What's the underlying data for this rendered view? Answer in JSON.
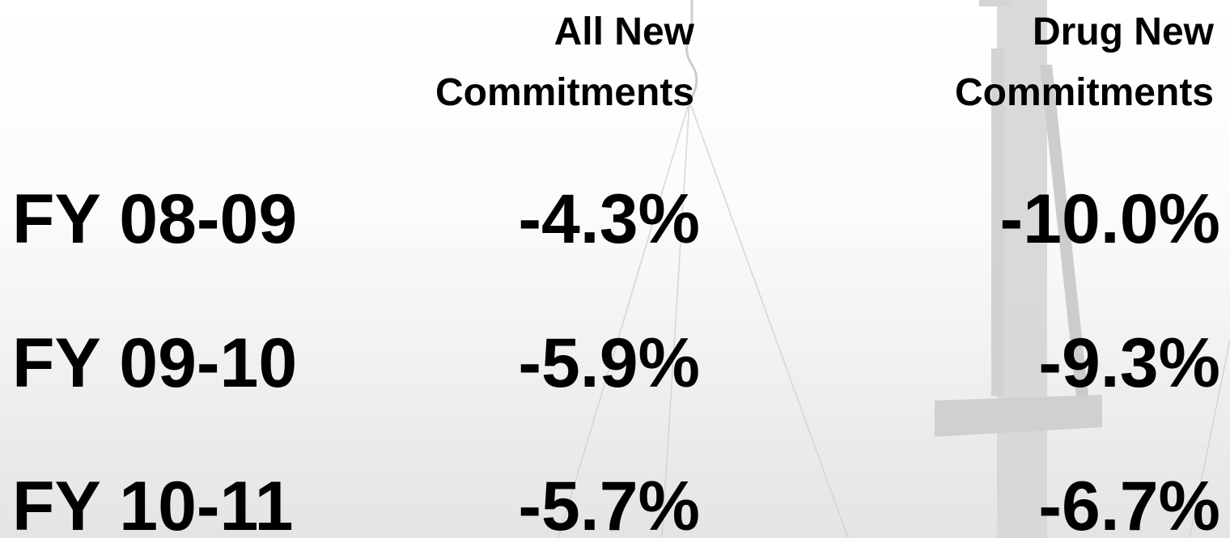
{
  "table": {
    "headers": [
      [
        "All New",
        "Commitments"
      ],
      [
        "Drug New",
        "Commitments"
      ]
    ],
    "rows": [
      [
        "FY 08-09",
        "-4.3%",
        "-10.0%"
      ],
      [
        "FY 09-10",
        "-5.9%",
        "-9.3%"
      ],
      [
        "FY 10-11",
        "-5.7%",
        "-6.7%"
      ]
    ]
  }
}
